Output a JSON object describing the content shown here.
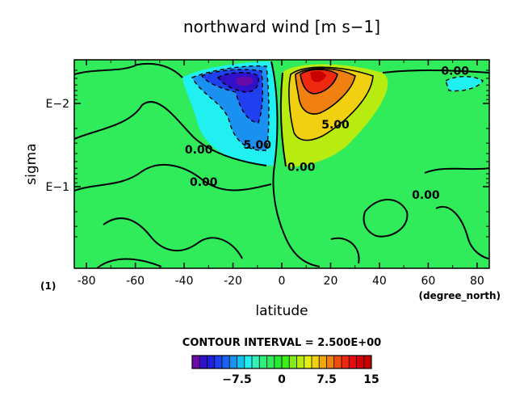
{
  "chart_data": {
    "type": "heatmap",
    "title": "northward wind [m s−1]",
    "xlabel": "latitude",
    "xunits": "(degree_north)",
    "ylabel": "sigma",
    "panel_label": "(1)",
    "xlim": [
      -85,
      85
    ],
    "xticks": [
      -80,
      -60,
      -40,
      -20,
      0,
      20,
      40,
      60,
      80
    ],
    "yscale": "log",
    "yticks": [
      {
        "label": "E−2",
        "value": 0.01
      },
      {
        "label": "E−1",
        "value": 0.1
      }
    ],
    "contour_interval_text": "CONTOUR INTERVAL = 2.500E+00",
    "contour_labels": [
      {
        "text": "0.00",
        "x": 71,
        "y": 0.0045
      },
      {
        "text": "5.00",
        "x": 22,
        "y": 0.02
      },
      {
        "text": "5.00",
        "x": -10,
        "y": 0.035
      },
      {
        "text": "0.00",
        "x": -34,
        "y": 0.04
      },
      {
        "text": "0.00",
        "x": 8,
        "y": 0.065
      },
      {
        "text": "0.00",
        "x": -32,
        "y": 0.098
      },
      {
        "text": "0.00",
        "x": 59,
        "y": 0.14
      }
    ],
    "colorbar": {
      "ticks": [
        {
          "label": "−7.5",
          "value": -7.5
        },
        {
          "label": "0",
          "value": 0
        },
        {
          "label": "7.5",
          "value": 7.5
        },
        {
          "label": "15",
          "value": 15
        }
      ],
      "min": -15,
      "max": 15,
      "step": 1.25,
      "colors": [
        "#6a0aa8",
        "#3010c8",
        "#2020e0",
        "#2040f0",
        "#1c64f0",
        "#1a90f0",
        "#14c0f0",
        "#20f0f0",
        "#34f0b8",
        "#30f080",
        "#30ec5a",
        "#28e838",
        "#40ec18",
        "#80ec18",
        "#b8ec10",
        "#e8f010",
        "#f0d010",
        "#f0a810",
        "#f08010",
        "#f05010",
        "#f02810",
        "#e80810",
        "#d0000a",
        "#c80000"
      ]
    }
  }
}
